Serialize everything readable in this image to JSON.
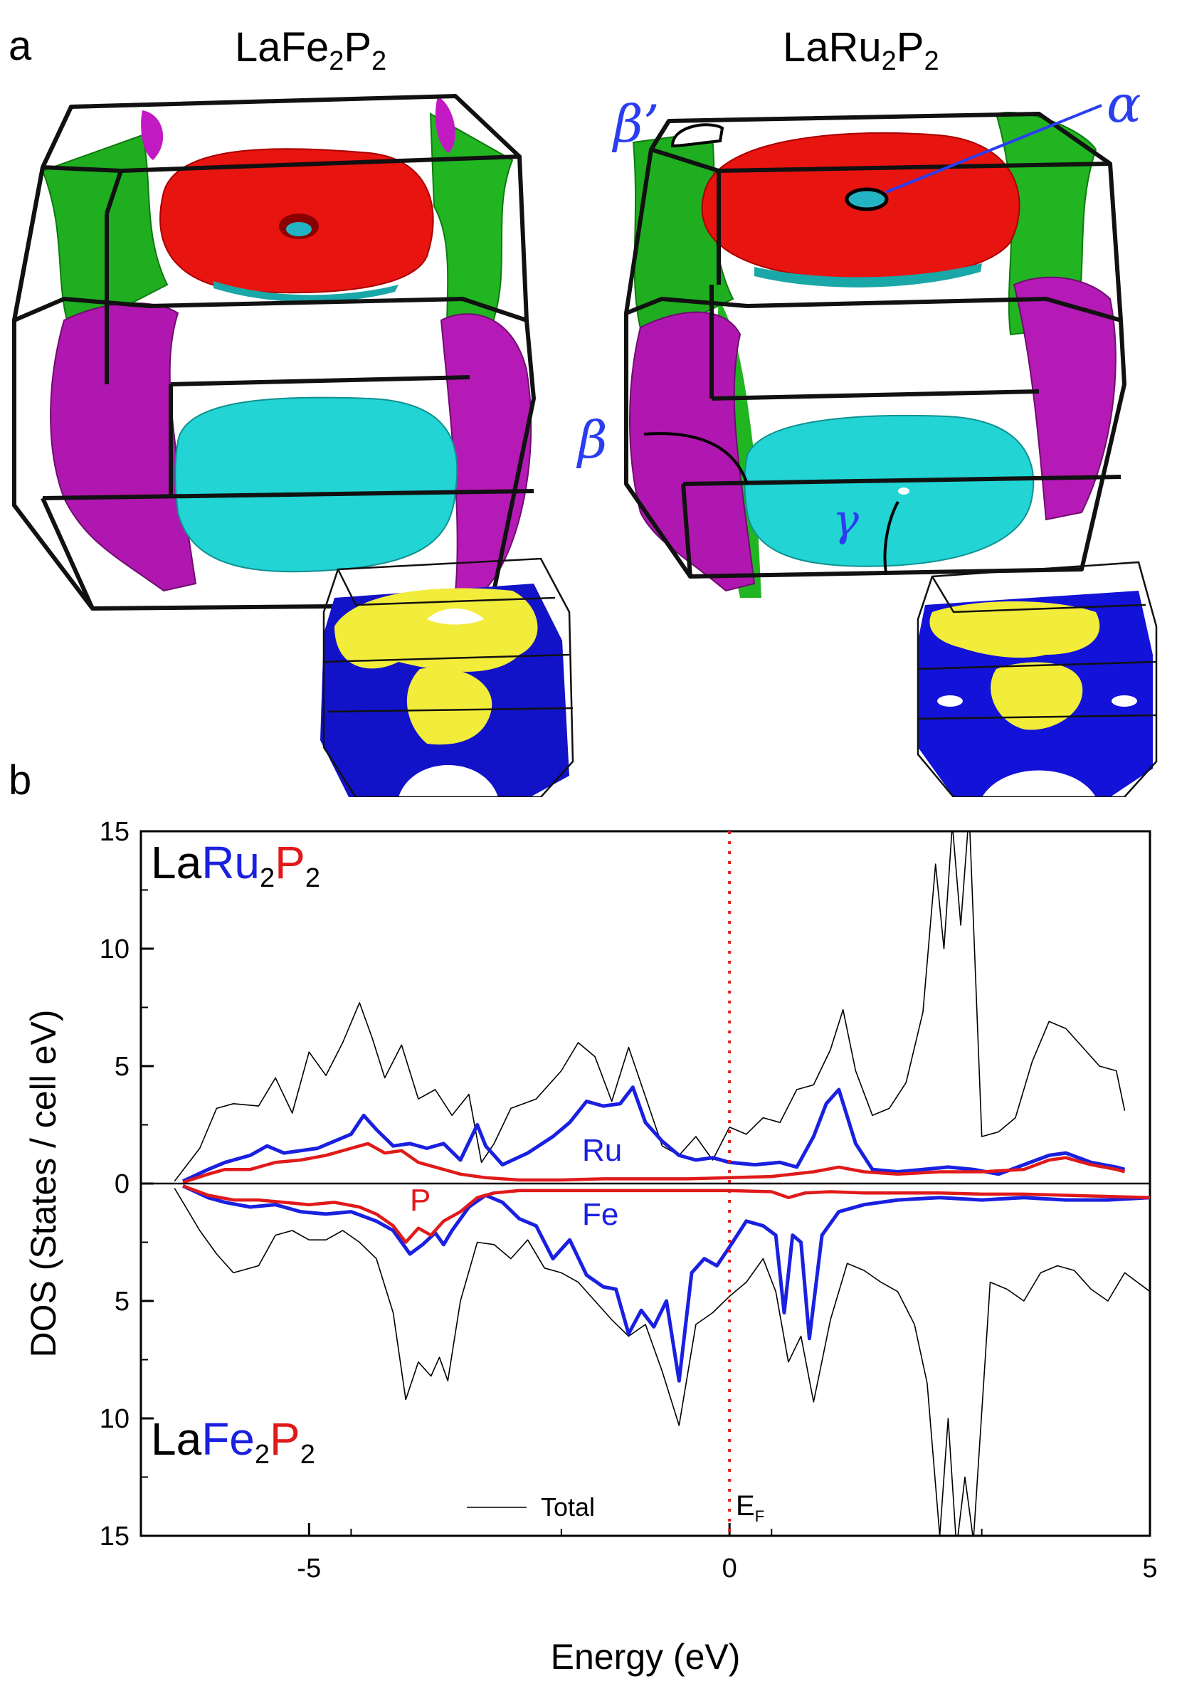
{
  "panel_a": {
    "letter": "a",
    "left_compound": {
      "main": "LaFe",
      "sub1": "2",
      "mid": "P",
      "sub2": "2"
    },
    "right_compound": {
      "main": "LaRu",
      "sub1": "2",
      "mid": "P",
      "sub2": "2"
    },
    "labels": {
      "alpha": "α",
      "beta_prime": "β’",
      "beta": "β",
      "gamma": "γ"
    }
  },
  "panel_b": {
    "letter": "b",
    "top_label": {
      "la": "La",
      "metal": "Ru",
      "sub1": "2",
      "p": "P",
      "sub2": "2"
    },
    "bottom_label": {
      "la": "La",
      "metal": "Fe",
      "sub1": "2",
      "p": "P",
      "sub2": "2"
    },
    "legend_total": "Total",
    "ef_label": "E",
    "ef_sub": "F",
    "curve_labels": {
      "ru": "Ru",
      "fe": "Fe",
      "p": "P"
    }
  },
  "chart_data": {
    "type": "line",
    "xlabel": "Energy (eV)",
    "ylabel": "DOS (States / cell eV)",
    "xlim": [
      -7,
      5
    ],
    "ylim_top": [
      0,
      15
    ],
    "ylim_bottom": [
      0,
      15
    ],
    "x_ticks": [
      -5,
      0,
      5
    ],
    "x_tick_labels": [
      "-5",
      "0",
      "5"
    ],
    "y_ticks_top": [
      15,
      10,
      5,
      0
    ],
    "y_tick_labels_top": [
      "15",
      "10",
      "5",
      "0"
    ],
    "y_ticks_bottom": [
      5,
      10,
      15
    ],
    "y_tick_labels_bottom": [
      "5",
      "10",
      "15"
    ],
    "fermi_level": 0,
    "colors": {
      "total": "#000000",
      "metal": "#1a20e0",
      "p": "#e01a1a",
      "ef": "#e01a1a"
    },
    "series": [
      {
        "name": "Total",
        "panel": "top",
        "x": [
          -6.6,
          -6.3,
          -6.1,
          -5.9,
          -5.6,
          -5.4,
          -5.2,
          -5.0,
          -4.8,
          -4.6,
          -4.4,
          -4.25,
          -4.1,
          -3.9,
          -3.7,
          -3.5,
          -3.3,
          -3.1,
          -2.95,
          -2.8,
          -2.6,
          -2.3,
          -2.0,
          -1.8,
          -1.6,
          -1.4,
          -1.2,
          -1.0,
          -0.8,
          -0.6,
          -0.4,
          -0.2,
          0.0,
          0.2,
          0.4,
          0.6,
          0.8,
          1.0,
          1.2,
          1.35,
          1.5,
          1.7,
          1.9,
          2.1,
          2.3,
          2.45,
          2.55,
          2.65,
          2.75,
          2.85,
          3.0,
          3.2,
          3.4,
          3.6,
          3.8,
          4.0,
          4.2,
          4.4,
          4.6,
          4.7
        ],
        "y": [
          0.1,
          1.5,
          3.2,
          3.4,
          3.3,
          4.5,
          3.0,
          5.6,
          4.6,
          6.0,
          7.7,
          6.2,
          4.5,
          5.9,
          3.6,
          4.0,
          2.9,
          3.8,
          0.9,
          1.7,
          3.2,
          3.6,
          4.8,
          6.0,
          5.4,
          3.5,
          5.8,
          3.7,
          1.6,
          1.2,
          2.0,
          1.0,
          2.4,
          2.1,
          2.8,
          2.6,
          4.0,
          4.2,
          5.7,
          7.4,
          4.8,
          2.9,
          3.2,
          4.3,
          7.3,
          13.6,
          10.0,
          15.3,
          11.0,
          15.8,
          2.0,
          2.2,
          2.8,
          5.2,
          6.9,
          6.6,
          5.8,
          5.0,
          4.8,
          3.1
        ]
      },
      {
        "name": "Ru",
        "panel": "top",
        "x": [
          -6.5,
          -6.2,
          -6.0,
          -5.7,
          -5.5,
          -5.3,
          -5.1,
          -4.9,
          -4.7,
          -4.5,
          -4.35,
          -4.2,
          -4.0,
          -3.8,
          -3.6,
          -3.4,
          -3.2,
          -3.0,
          -2.9,
          -2.7,
          -2.4,
          -2.1,
          -1.9,
          -1.7,
          -1.5,
          -1.3,
          -1.15,
          -1.0,
          -0.8,
          -0.6,
          -0.4,
          -0.2,
          0.0,
          0.3,
          0.6,
          0.8,
          1.0,
          1.15,
          1.3,
          1.5,
          1.7,
          2.0,
          2.3,
          2.6,
          2.9,
          3.2,
          3.5,
          3.8,
          4.0,
          4.3,
          4.6,
          4.7
        ],
        "y": [
          0.1,
          0.6,
          0.9,
          1.2,
          1.6,
          1.3,
          1.4,
          1.5,
          1.8,
          2.1,
          2.9,
          2.3,
          1.6,
          1.7,
          1.5,
          1.7,
          1.0,
          2.5,
          1.6,
          0.8,
          1.3,
          2.0,
          2.6,
          3.5,
          3.3,
          3.4,
          4.1,
          2.6,
          1.8,
          1.2,
          1.0,
          1.1,
          0.9,
          0.8,
          0.9,
          0.7,
          2.0,
          3.4,
          4.0,
          1.7,
          0.6,
          0.5,
          0.6,
          0.7,
          0.6,
          0.4,
          0.8,
          1.2,
          1.3,
          0.9,
          0.7,
          0.6
        ]
      },
      {
        "name": "P",
        "panel": "top",
        "x": [
          -6.5,
          -6.2,
          -6.0,
          -5.7,
          -5.4,
          -5.1,
          -4.8,
          -4.5,
          -4.3,
          -4.1,
          -3.9,
          -3.7,
          -3.5,
          -3.2,
          -2.9,
          -2.5,
          -2.0,
          -1.5,
          -1.0,
          -0.5,
          0.0,
          0.5,
          1.0,
          1.3,
          1.6,
          2.0,
          2.5,
          3.0,
          3.5,
          3.8,
          4.0,
          4.3,
          4.6,
          4.7
        ],
        "y": [
          0.05,
          0.4,
          0.6,
          0.6,
          0.9,
          1.0,
          1.2,
          1.5,
          1.7,
          1.3,
          1.4,
          0.9,
          0.7,
          0.4,
          0.25,
          0.15,
          0.15,
          0.2,
          0.2,
          0.2,
          0.25,
          0.3,
          0.5,
          0.7,
          0.5,
          0.4,
          0.5,
          0.5,
          0.6,
          1.0,
          1.1,
          0.8,
          0.6,
          0.5
        ]
      },
      {
        "name": "Total",
        "panel": "bottom",
        "x": [
          -6.6,
          -6.3,
          -6.1,
          -5.9,
          -5.6,
          -5.4,
          -5.2,
          -5.0,
          -4.8,
          -4.6,
          -4.4,
          -4.2,
          -4.0,
          -3.85,
          -3.7,
          -3.55,
          -3.45,
          -3.35,
          -3.2,
          -3.0,
          -2.8,
          -2.6,
          -2.4,
          -2.2,
          -2.0,
          -1.8,
          -1.6,
          -1.4,
          -1.2,
          -1.0,
          -0.8,
          -0.6,
          -0.4,
          -0.2,
          0.0,
          0.2,
          0.4,
          0.55,
          0.7,
          0.85,
          1.0,
          1.2,
          1.4,
          1.6,
          1.8,
          2.0,
          2.2,
          2.35,
          2.5,
          2.6,
          2.7,
          2.8,
          2.9,
          3.1,
          3.3,
          3.5,
          3.7,
          3.9,
          4.1,
          4.3,
          4.5,
          4.7,
          5.0
        ],
        "y": [
          0.2,
          2.0,
          3.0,
          3.8,
          3.5,
          2.2,
          2.0,
          2.4,
          2.4,
          2.0,
          2.5,
          3.2,
          5.5,
          9.2,
          7.6,
          8.2,
          7.4,
          8.4,
          5.0,
          2.5,
          2.6,
          3.2,
          2.4,
          3.6,
          3.8,
          4.2,
          5.0,
          5.8,
          6.5,
          6.0,
          8.0,
          10.3,
          6.0,
          5.5,
          4.8,
          4.2,
          3.2,
          4.6,
          7.6,
          6.5,
          9.3,
          5.8,
          3.4,
          3.7,
          4.2,
          4.6,
          6.0,
          8.5,
          15.0,
          10.0,
          15.5,
          12.5,
          15.2,
          4.2,
          4.5,
          5.0,
          3.8,
          3.5,
          3.7,
          4.5,
          5.0,
          3.8,
          4.6
        ]
      },
      {
        "name": "Fe",
        "panel": "bottom",
        "x": [
          -6.5,
          -6.2,
          -6.0,
          -5.7,
          -5.4,
          -5.1,
          -4.8,
          -4.5,
          -4.2,
          -4.0,
          -3.8,
          -3.65,
          -3.5,
          -3.4,
          -3.3,
          -3.1,
          -2.9,
          -2.7,
          -2.5,
          -2.3,
          -2.1,
          -1.9,
          -1.7,
          -1.5,
          -1.35,
          -1.2,
          -1.05,
          -0.9,
          -0.75,
          -0.6,
          -0.45,
          -0.3,
          -0.15,
          0.0,
          0.2,
          0.4,
          0.55,
          0.65,
          0.75,
          0.85,
          0.95,
          1.1,
          1.3,
          1.6,
          2.0,
          2.5,
          3.0,
          3.5,
          4.0,
          4.5,
          5.0
        ],
        "y": [
          0.1,
          0.6,
          0.8,
          1.0,
          0.9,
          1.2,
          1.3,
          1.2,
          1.6,
          2.0,
          3.0,
          2.6,
          2.1,
          2.6,
          2.0,
          1.0,
          0.5,
          0.8,
          1.5,
          1.8,
          3.2,
          2.4,
          3.9,
          4.4,
          4.5,
          6.4,
          5.4,
          6.1,
          5.0,
          8.4,
          3.8,
          3.2,
          3.5,
          2.7,
          1.6,
          1.8,
          2.2,
          5.5,
          2.2,
          2.5,
          6.6,
          2.2,
          1.2,
          0.9,
          0.7,
          0.6,
          0.7,
          0.6,
          0.7,
          0.7,
          0.6
        ]
      },
      {
        "name": "P",
        "panel": "bottom",
        "x": [
          -6.5,
          -6.2,
          -5.9,
          -5.6,
          -5.3,
          -5.0,
          -4.7,
          -4.4,
          -4.2,
          -4.0,
          -3.85,
          -3.7,
          -3.55,
          -3.4,
          -3.2,
          -3.0,
          -2.8,
          -2.5,
          -2.0,
          -1.5,
          -1.0,
          -0.5,
          0.0,
          0.5,
          0.7,
          0.9,
          1.2,
          1.6,
          2.0,
          2.5,
          3.0,
          3.5,
          4.0,
          4.5,
          5.0
        ],
        "y": [
          0.1,
          0.5,
          0.7,
          0.7,
          0.8,
          0.9,
          0.8,
          1.0,
          1.3,
          1.8,
          2.5,
          1.9,
          2.2,
          1.6,
          1.2,
          0.6,
          0.4,
          0.3,
          0.3,
          0.3,
          0.3,
          0.3,
          0.3,
          0.35,
          0.6,
          0.4,
          0.35,
          0.4,
          0.4,
          0.4,
          0.45,
          0.45,
          0.5,
          0.55,
          0.6
        ]
      }
    ]
  }
}
